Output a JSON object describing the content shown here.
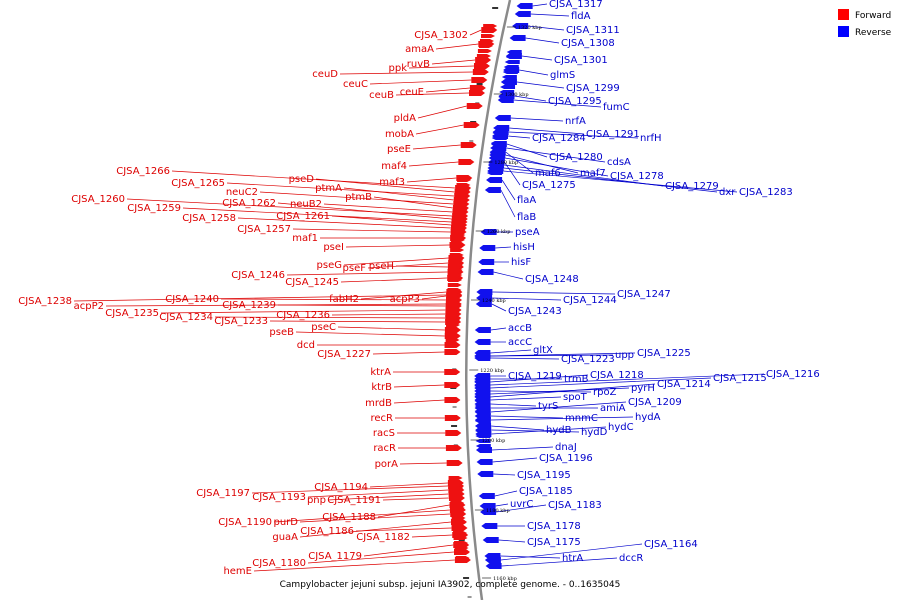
{
  "caption": "Campylobacter jejuni subsp. jejuni IA3902, complete genome. - 0..1635045",
  "legend": {
    "forward_label": "Forward",
    "reverse_label": "Reverse",
    "forward_color": "#ff0000",
    "reverse_color": "#0000ff"
  },
  "scale_labels": [
    "1320 kbp",
    "1300 kbp",
    "1280 kbp",
    "1260 kbp",
    "1240 kbp",
    "1220 kbp",
    "1200 kbp",
    "1180 kbp",
    "1160 kbp"
  ],
  "forward_genes": [
    "CJSA_1302",
    "amaA",
    "ruvB",
    "ppk",
    "ceuD",
    "ceuC",
    "ceuE",
    "ceuB",
    "pldA",
    "mobA",
    "pseE",
    "maf4",
    "maf3",
    "CJSA_1266",
    "pseD",
    "CJSA_1265",
    "ptmA",
    "neuC2",
    "ptmB",
    "neuB2",
    "CJSA_1260",
    "CJSA_1262",
    "CJSA_1259",
    "CJSA_1261",
    "CJSA_1258",
    "CJSA_1257",
    "maf1",
    "pseI",
    "pseG",
    "pseF",
    "pseH",
    "CJSA_1246",
    "CJSA_1245",
    "CJSA_1238",
    "fabH2",
    "acpP3",
    "CJSA_1240",
    "acpP2",
    "CJSA_1239",
    "CJSA_1235",
    "CJSA_1236",
    "CJSA_1234",
    "CJSA_1233",
    "pseC",
    "pseB",
    "dcd",
    "CJSA_1227",
    "ktrA",
    "ktrB",
    "mrdB",
    "recR",
    "racS",
    "racR",
    "porA",
    "CJSA_1194",
    "CJSA_1197",
    "CJSA_1193",
    "pnp",
    "CJSA_1191",
    "CJSA_1188",
    "CJSA_1190",
    "purD",
    "guaA",
    "CJSA_1186",
    "CJSA_1182",
    "CJSA_1179",
    "CJSA_1180",
    "hemE"
  ],
  "reverse_genes": [
    "CJSA_1317",
    "fldA",
    "CJSA_1311",
    "CJSA_1308",
    "CJSA_1301",
    "glmS",
    "CJSA_1299",
    "CJSA_1295",
    "fumC",
    "nrfA",
    "CJSA_1291",
    "nrfH",
    "CJSA_1284",
    "CJSA_1280",
    "cdsA",
    "maf6",
    "maf7",
    "CJSA_1278",
    "CJSA_1275",
    "CJSA_1279",
    "dxr",
    "CJSA_1283",
    "flaA",
    "flaB",
    "pseA",
    "hisH",
    "hisF",
    "CJSA_1248",
    "CJSA_1247",
    "CJSA_1244",
    "CJSA_1243",
    "accB",
    "accC",
    "gltX",
    "CJSA_1223",
    "upp",
    "CJSA_1225",
    "CJSA_1219",
    "trmB",
    "CJSA_1218",
    "CJSA_1216",
    "CJSA_1215",
    "rpoZ",
    "pyrH",
    "CJSA_1214",
    "spoT",
    "tyrS",
    "amiA",
    "CJSA_1209",
    "mnmC",
    "hydA",
    "hydB",
    "hydD",
    "hydC",
    "dnaJ",
    "CJSA_1196",
    "CJSA_1195",
    "CJSA_1185",
    "uvrC",
    "CJSA_1183",
    "CJSA_1178",
    "CJSA_1175",
    "CJSA_1164",
    "htrA",
    "dccR"
  ]
}
